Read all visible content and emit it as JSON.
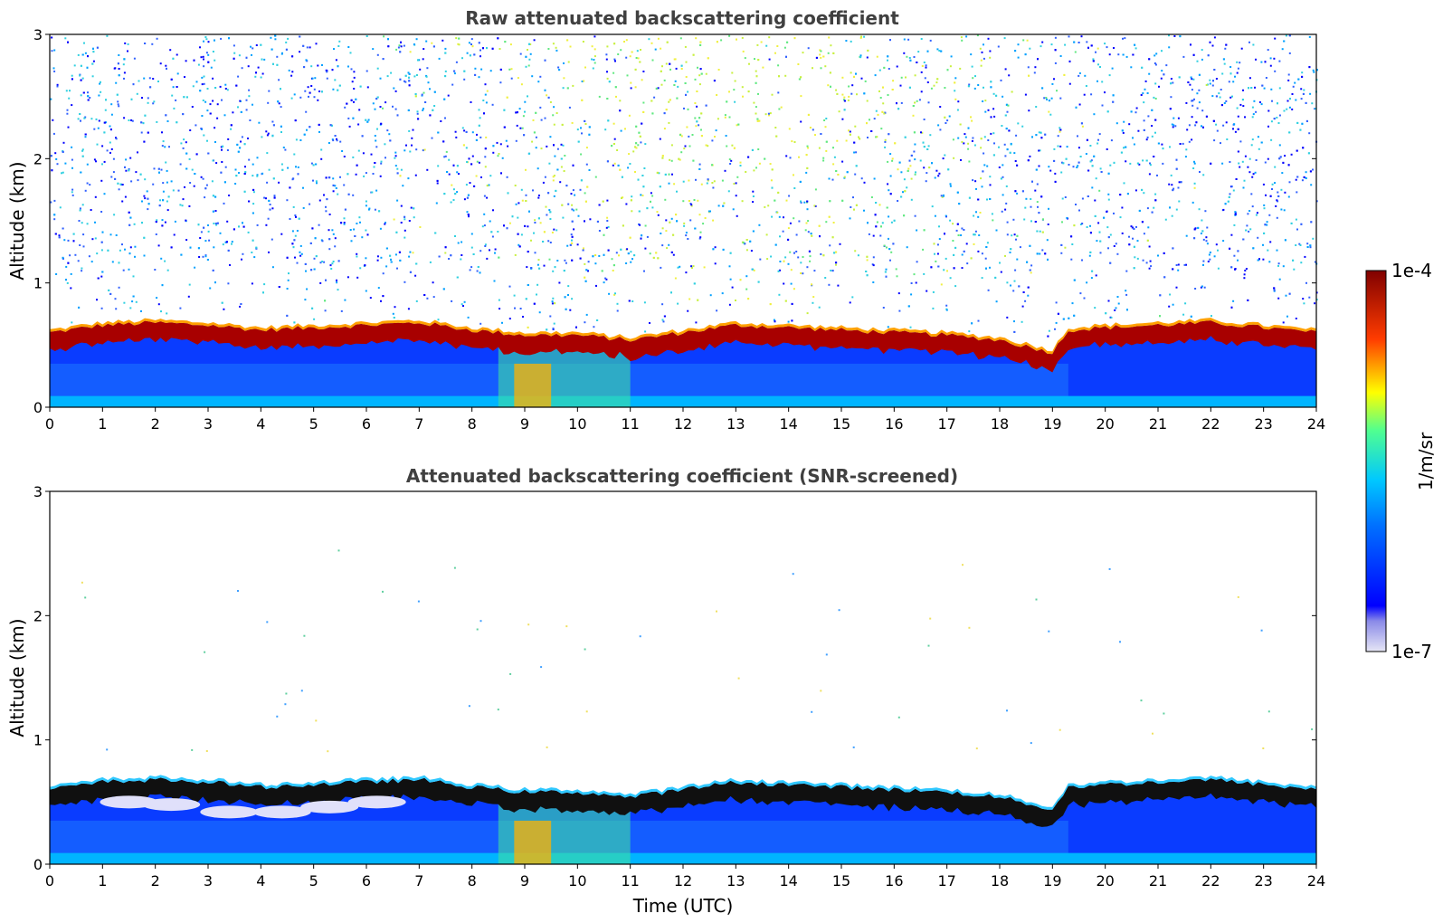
{
  "chart_data": [
    {
      "type": "heatmap",
      "title": "Raw attenuated backscattering coefficient",
      "xlabel": "",
      "ylabel": "Altitude (km)",
      "xlim": [
        0,
        24
      ],
      "ylim": [
        0,
        3
      ],
      "x_ticks": [
        "0",
        "1",
        "2",
        "3",
        "4",
        "5",
        "6",
        "7",
        "8",
        "9",
        "10",
        "11",
        "12",
        "13",
        "14",
        "15",
        "16",
        "17",
        "18",
        "19",
        "20",
        "21",
        "22",
        "23",
        "24"
      ],
      "y_ticks": [
        "0",
        "1",
        "2",
        "3"
      ],
      "variant": "raw",
      "layer_top_km": {
        "x": [
          0,
          1,
          2,
          3,
          4,
          5,
          6,
          7,
          8,
          9,
          10,
          11,
          12,
          13,
          14,
          15,
          16,
          17,
          18,
          19,
          19.3,
          20,
          21,
          22,
          23,
          24
        ],
        "y": [
          0.6,
          0.66,
          0.68,
          0.66,
          0.62,
          0.64,
          0.66,
          0.68,
          0.62,
          0.58,
          0.58,
          0.54,
          0.6,
          0.66,
          0.64,
          0.62,
          0.6,
          0.58,
          0.54,
          0.44,
          0.62,
          0.64,
          0.66,
          0.68,
          0.64,
          0.6
        ]
      }
    },
    {
      "type": "heatmap",
      "title": "Attenuated backscattering coefficient (SNR-screened)",
      "xlabel": "Time (UTC)",
      "ylabel": "Altitude (km)",
      "xlim": [
        0,
        24
      ],
      "ylim": [
        0,
        3
      ],
      "x_ticks": [
        "0",
        "1",
        "2",
        "3",
        "4",
        "5",
        "6",
        "7",
        "8",
        "9",
        "10",
        "11",
        "12",
        "13",
        "14",
        "15",
        "16",
        "17",
        "18",
        "19",
        "20",
        "21",
        "22",
        "23",
        "24"
      ],
      "y_ticks": [
        "0",
        "1",
        "2",
        "3"
      ],
      "variant": "screened",
      "layer_top_km": {
        "x": [
          0,
          1,
          2,
          3,
          4,
          5,
          6,
          7,
          8,
          9,
          10,
          11,
          12,
          13,
          14,
          15,
          16,
          17,
          18,
          19,
          19.3,
          20,
          21,
          22,
          23,
          24
        ],
        "y": [
          0.6,
          0.66,
          0.68,
          0.66,
          0.62,
          0.64,
          0.66,
          0.68,
          0.62,
          0.58,
          0.58,
          0.54,
          0.6,
          0.66,
          0.64,
          0.62,
          0.6,
          0.58,
          0.54,
          0.44,
          0.62,
          0.64,
          0.66,
          0.68,
          0.64,
          0.6
        ]
      }
    }
  ],
  "colorbar": {
    "label": "1/m/sr",
    "max_label": "1e-4",
    "min_label": "1e-7",
    "scale": "log",
    "range": [
      1e-07,
      0.0001
    ],
    "colormap": "jet",
    "colors": [
      "#e6e6f5",
      "#0000ff",
      "#00c8ff",
      "#ffff00",
      "#ff3c00",
      "#800000"
    ]
  }
}
